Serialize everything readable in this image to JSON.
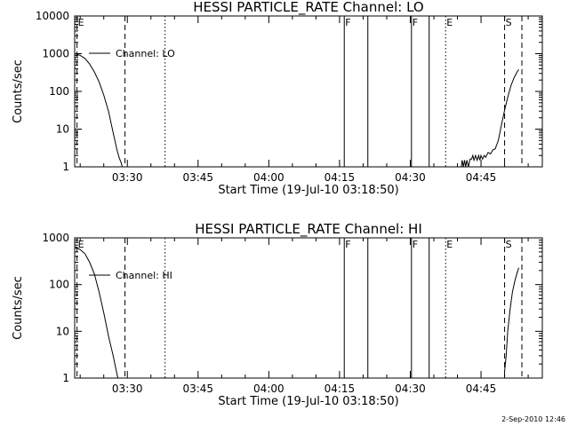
{
  "footer": {
    "timestamp": "2-Sep-2010 12:46"
  },
  "chart_data": [
    {
      "type": "line",
      "title": "HESSI PARTICLE_RATE Channel: LO",
      "xlabel": "Start Time (19-Jul-10 03:18:50)",
      "ylabel": "Counts/sec",
      "yscale": "log",
      "xlim": [
        "03:18:50",
        "04:58:00"
      ],
      "ylim": [
        1,
        10000
      ],
      "grid": false,
      "legend_position": "top-left",
      "x_tick_labels": [
        "03:30",
        "03:45",
        "04:00",
        "04:15",
        "04:30",
        "04:45"
      ],
      "y_tick_labels": [
        "1",
        "10",
        "100",
        "1000",
        "10000"
      ],
      "series": [
        {
          "name": "Channel: LO",
          "segments": [
            [
              {
                "x": "03:19:00",
                "y": 1000
              },
              {
                "x": "03:20:00",
                "y": 900
              },
              {
                "x": "03:21:00",
                "y": 750
              },
              {
                "x": "03:22:00",
                "y": 530
              },
              {
                "x": "03:23:00",
                "y": 330
              },
              {
                "x": "03:24:00",
                "y": 180
              },
              {
                "x": "03:25:00",
                "y": 80
              },
              {
                "x": "03:26:00",
                "y": 30
              },
              {
                "x": "03:27:00",
                "y": 8
              },
              {
                "x": "03:27:45",
                "y": 3
              },
              {
                "x": "03:28:15",
                "y": 1.8
              },
              {
                "x": "03:28:40",
                "y": 1.3
              },
              {
                "x": "03:28:55",
                "y": 1
              }
            ],
            [
              {
                "x": "04:40:50",
                "y": 1
              },
              {
                "x": "04:41:00",
                "y": 1.5
              },
              {
                "x": "04:41:15",
                "y": 1
              },
              {
                "x": "04:41:30",
                "y": 1.5
              },
              {
                "x": "04:41:45",
                "y": 1
              },
              {
                "x": "04:42:00",
                "y": 1.5
              },
              {
                "x": "04:42:20",
                "y": 1
              },
              {
                "x": "04:42:40",
                "y": 1.6
              },
              {
                "x": "04:43:00",
                "y": 1.6
              },
              {
                "x": "04:43:15",
                "y": 2
              },
              {
                "x": "04:43:30",
                "y": 1.5
              },
              {
                "x": "04:43:50",
                "y": 2
              },
              {
                "x": "04:44:10",
                "y": 1.5
              },
              {
                "x": "04:44:30",
                "y": 2
              },
              {
                "x": "04:44:45",
                "y": 1.5
              },
              {
                "x": "04:45:00",
                "y": 2
              },
              {
                "x": "04:45:20",
                "y": 1.6
              },
              {
                "x": "04:45:40",
                "y": 2
              },
              {
                "x": "04:46:00",
                "y": 1.8
              },
              {
                "x": "04:46:30",
                "y": 2.4
              },
              {
                "x": "04:47:00",
                "y": 2.2
              },
              {
                "x": "04:47:30",
                "y": 2.8
              },
              {
                "x": "04:48:00",
                "y": 3
              },
              {
                "x": "04:48:40",
                "y": 5
              },
              {
                "x": "04:49:20",
                "y": 13
              },
              {
                "x": "04:50:00",
                "y": 32
              },
              {
                "x": "04:50:40",
                "y": 70
              },
              {
                "x": "04:51:20",
                "y": 140
              },
              {
                "x": "04:52:00",
                "y": 230
              },
              {
                "x": "04:52:40",
                "y": 330
              },
              {
                "x": "04:53:00",
                "y": 380
              }
            ]
          ]
        }
      ],
      "markers": [
        {
          "x": "03:19:20",
          "style": "dashed",
          "label": "E"
        },
        {
          "x": "03:29:30",
          "style": "dashed",
          "label": ""
        },
        {
          "x": "03:38:00",
          "style": "dotted",
          "label": ""
        },
        {
          "x": "04:16:00",
          "style": "solid",
          "label": "F"
        },
        {
          "x": "04:21:00",
          "style": "solid",
          "label": ""
        },
        {
          "x": "04:30:15",
          "style": "solid",
          "label": "F"
        },
        {
          "x": "04:34:00",
          "style": "solid",
          "label": ""
        },
        {
          "x": "04:37:30",
          "style": "dotted",
          "label": "E"
        },
        {
          "x": "04:50:00",
          "style": "dashed",
          "label": "S"
        },
        {
          "x": "04:53:40",
          "style": "dashed",
          "label": ""
        }
      ]
    },
    {
      "type": "line",
      "title": "HESSI PARTICLE_RATE Channel: HI",
      "xlabel": "Start Time (19-Jul-10 03:18:50)",
      "ylabel": "Counts/sec",
      "yscale": "log",
      "xlim": [
        "03:18:50",
        "04:58:00"
      ],
      "ylim": [
        1,
        1000
      ],
      "grid": false,
      "legend_position": "top-left",
      "x_tick_labels": [
        "03:30",
        "03:45",
        "04:00",
        "04:15",
        "04:30",
        "04:45"
      ],
      "y_tick_labels": [
        "1",
        "10",
        "100",
        "1000"
      ],
      "series": [
        {
          "name": "Channel: HI",
          "segments": [
            [
              {
                "x": "03:19:00",
                "y": 650
              },
              {
                "x": "03:20:00",
                "y": 560
              },
              {
                "x": "03:21:00",
                "y": 460
              },
              {
                "x": "03:22:00",
                "y": 300
              },
              {
                "x": "03:23:00",
                "y": 170
              },
              {
                "x": "03:24:00",
                "y": 70
              },
              {
                "x": "03:25:00",
                "y": 25
              },
              {
                "x": "03:26:00",
                "y": 8
              },
              {
                "x": "03:27:00",
                "y": 3
              },
              {
                "x": "03:27:40",
                "y": 1.4
              },
              {
                "x": "03:28:00",
                "y": 1
              }
            ],
            [
              {
                "x": "04:50:00",
                "y": 1.4
              },
              {
                "x": "04:50:20",
                "y": 3
              },
              {
                "x": "04:50:40",
                "y": 10
              },
              {
                "x": "04:51:10",
                "y": 30
              },
              {
                "x": "04:51:40",
                "y": 70
              },
              {
                "x": "04:52:10",
                "y": 120
              },
              {
                "x": "04:52:40",
                "y": 180
              },
              {
                "x": "04:53:00",
                "y": 230
              }
            ]
          ]
        }
      ],
      "markers": [
        {
          "x": "03:19:20",
          "style": "dashed",
          "label": "E"
        },
        {
          "x": "03:29:30",
          "style": "dashed",
          "label": ""
        },
        {
          "x": "03:38:00",
          "style": "dotted",
          "label": ""
        },
        {
          "x": "04:16:00",
          "style": "solid",
          "label": "F"
        },
        {
          "x": "04:21:00",
          "style": "solid",
          "label": ""
        },
        {
          "x": "04:30:15",
          "style": "solid",
          "label": "F"
        },
        {
          "x": "04:34:00",
          "style": "solid",
          "label": ""
        },
        {
          "x": "04:37:30",
          "style": "dotted",
          "label": "E"
        },
        {
          "x": "04:50:00",
          "style": "dashed",
          "label": "S"
        },
        {
          "x": "04:53:40",
          "style": "dashed",
          "label": ""
        }
      ]
    }
  ]
}
